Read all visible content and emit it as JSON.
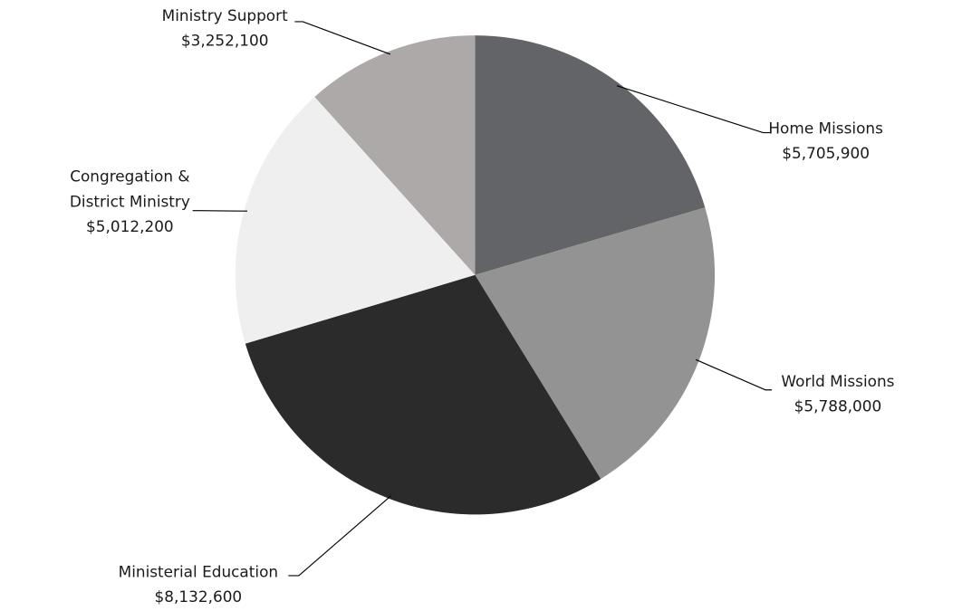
{
  "chart_data": {
    "type": "pie",
    "categories": [
      "Home Missions",
      "World Missions",
      "Ministerial Education",
      "Congregation &\nDistrict Ministry",
      "Ministry Support"
    ],
    "values": [
      5705900,
      5788000,
      8132600,
      5012200,
      3252100
    ],
    "value_labels": [
      "$5,705,900",
      "$5,788,000",
      "$8,132,600",
      "$5,012,200",
      "$3,252,100"
    ],
    "colors": [
      "#636467",
      "#939393",
      "#2b2b2b",
      "#efefef",
      "#ada9a8"
    ]
  }
}
